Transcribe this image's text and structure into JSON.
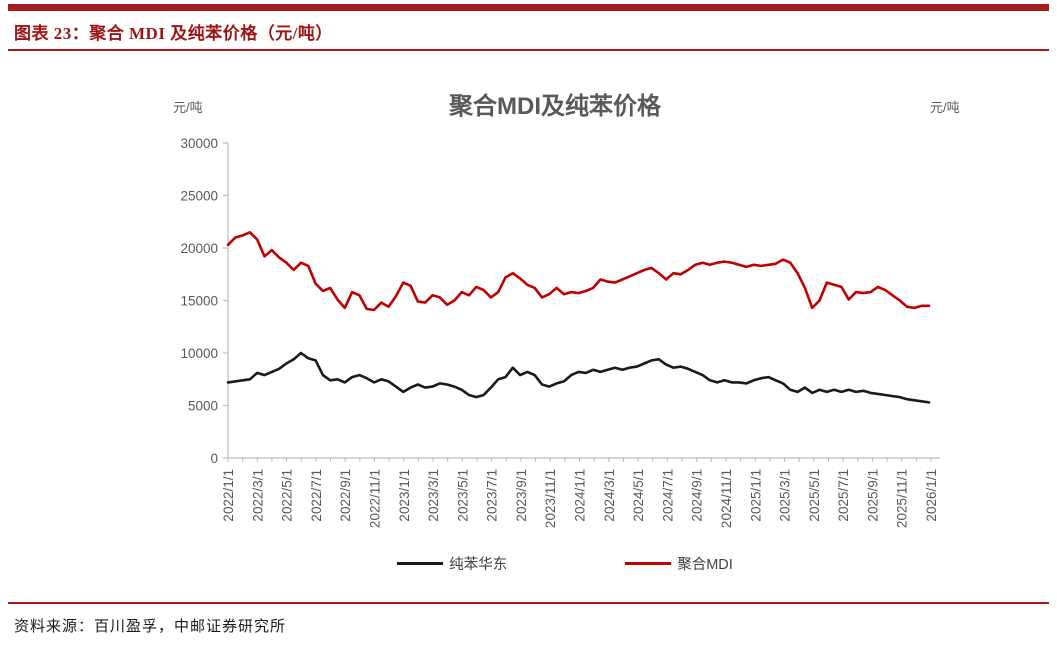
{
  "figure": {
    "caption": "图表 23：聚合 MDI 及纯苯价格（元/吨）",
    "source": "资料来源：百川盈孚，中邮证券研究所"
  },
  "colors": {
    "accent_red": "#A61B1B",
    "caption_text": "#9E1414",
    "axis_line": "#BFBFBF",
    "tick_text": "#595959",
    "series_black": "#1a1a1a",
    "series_red": "#C00000"
  },
  "chart_data": {
    "type": "line",
    "title": "聚合MDI及纯苯价格",
    "unit_left": "元/吨",
    "unit_right": "元/吨",
    "ylim": [
      0,
      30000
    ],
    "yticks": [
      0,
      5000,
      10000,
      15000,
      20000,
      25000,
      30000
    ],
    "x_months_span": 48,
    "xtick_labels": [
      "2022/1/1",
      "2022/3/1",
      "2022/5/1",
      "2022/7/1",
      "2022/9/1",
      "2022/11/1",
      "2023/1/1",
      "2023/3/1",
      "2023/5/1",
      "2023/7/1",
      "2023/9/1",
      "2023/11/1",
      "2024/1/1",
      "2024/3/1",
      "2024/5/1",
      "2024/7/1",
      "2024/9/1",
      "2024/11/1",
      "2025/1/1",
      "2025/3/1",
      "2025/5/1",
      "2025/7/1",
      "2025/9/1",
      "2025/11/1",
      "2026/1/1"
    ],
    "grid": false,
    "legend_position": "bottom",
    "sample_interval": "semi-monthly 2022/1/1 - 2025/12/26",
    "series": [
      {
        "name": "纯苯华东",
        "color": "#1a1a1a",
        "values": [
          7200,
          7300,
          7400,
          7500,
          8100,
          7900,
          8200,
          8500,
          9000,
          9400,
          10000,
          9500,
          9300,
          7900,
          7400,
          7500,
          7200,
          7700,
          7900,
          7600,
          7200,
          7500,
          7300,
          6800,
          6300,
          6700,
          7000,
          6700,
          6800,
          7100,
          7000,
          6800,
          6500,
          6000,
          5800,
          6000,
          6700,
          7500,
          7700,
          8600,
          7900,
          8200,
          7900,
          7000,
          6800,
          7100,
          7300,
          7900,
          8200,
          8100,
          8400,
          8200,
          8400,
          8600,
          8400,
          8600,
          8700,
          9000,
          9300,
          9400,
          8900,
          8600,
          8700,
          8500,
          8200,
          7900,
          7400,
          7200,
          7400,
          7200,
          7200,
          7100,
          7400,
          7600,
          7700,
          7400,
          7100,
          6500,
          6300,
          6700,
          6200,
          6500,
          6300,
          6500,
          6300,
          6500,
          6300,
          6400,
          6200,
          6100,
          6000,
          5900,
          5800,
          5600,
          5500,
          5400,
          5300
        ]
      },
      {
        "name": "聚合MDI",
        "color": "#C00000",
        "values": [
          20300,
          21000,
          21200,
          21500,
          20800,
          19200,
          19800,
          19100,
          18600,
          17900,
          18600,
          18300,
          16600,
          15900,
          16200,
          15100,
          14300,
          15800,
          15500,
          14200,
          14100,
          14800,
          14400,
          15400,
          16700,
          16400,
          14900,
          14800,
          15500,
          15300,
          14600,
          15000,
          15800,
          15500,
          16300,
          16000,
          15300,
          15800,
          17200,
          17600,
          17100,
          16500,
          16200,
          15300,
          15600,
          16200,
          15600,
          15800,
          15700,
          15900,
          16200,
          17000,
          16800,
          16700,
          17000,
          17300,
          17600,
          17900,
          18100,
          17600,
          17000,
          17600,
          17500,
          17900,
          18400,
          18600,
          18400,
          18600,
          18700,
          18600,
          18400,
          18200,
          18400,
          18300,
          18400,
          18500,
          18900,
          18600,
          17600,
          16200,
          14300,
          15000,
          16700,
          16500,
          16300,
          15100,
          15800,
          15700,
          15800,
          16300,
          16000,
          15500,
          15000,
          14400,
          14300,
          14500,
          14500
        ]
      }
    ]
  }
}
